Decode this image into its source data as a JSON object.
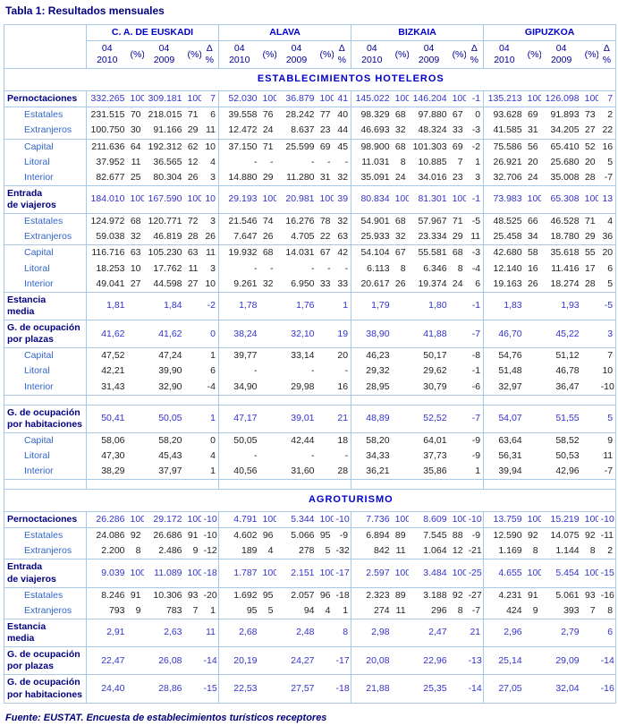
{
  "title": "Tabla 1: Resultados mensuales",
  "footer": "Fuente: EUSTAT. Encuesta de establecimientos turísticos receptores",
  "table": {
    "region_groups": [
      "C. A.  DE EUSKADI",
      "ALAVA",
      "BIZKAIA",
      "GIPUZKOA"
    ],
    "sub_columns": [
      "04\n2010",
      "(%)",
      "04\n2009",
      "(%)",
      "Δ %"
    ],
    "sections": [
      {
        "band": "ESTABLECIMIENTOS HOTELEROS",
        "rows": [
          {
            "label": "Pernoctaciones",
            "level": "main",
            "sep": true,
            "cells": [
              "332.265",
              "100",
              "309.181",
              "100",
              "7",
              "52.030",
              "100",
              "36.879",
              "100",
              "41",
              "145.022",
              "100",
              "146.204",
              "100",
              "-1",
              "135.213",
              "100",
              "126.098",
              "100",
              "7"
            ]
          },
          {
            "label": "Estatales",
            "level": "sub",
            "sep": true,
            "cells": [
              "231.515",
              "70",
              "218.015",
              "71",
              "6",
              "39.558",
              "76",
              "28.242",
              "77",
              "40",
              "98.329",
              "68",
              "97.880",
              "67",
              "0",
              "93.628",
              "69",
              "91.893",
              "73",
              "2"
            ]
          },
          {
            "label": "Extranjeros",
            "level": "sub",
            "sep": false,
            "cells": [
              "100.750",
              "30",
              "91.166",
              "29",
              "11",
              "12.472",
              "24",
              "8.637",
              "23",
              "44",
              "46.693",
              "32",
              "48.324",
              "33",
              "-3",
              "41.585",
              "31",
              "34.205",
              "27",
              "22"
            ]
          },
          {
            "label": "Capital",
            "level": "sub",
            "sep": true,
            "cells": [
              "211.636",
              "64",
              "192.312",
              "62",
              "10",
              "37.150",
              "71",
              "25.599",
              "69",
              "45",
              "98.900",
              "68",
              "101.303",
              "69",
              "-2",
              "75.586",
              "56",
              "65.410",
              "52",
              "16"
            ]
          },
          {
            "label": "Litoral",
            "level": "sub",
            "sep": false,
            "cells": [
              "37.952",
              "11",
              "36.565",
              "12",
              "4",
              "-",
              "-",
              "-",
              "-",
              "-",
              "11.031",
              "8",
              "10.885",
              "7",
              "1",
              "26.921",
              "20",
              "25.680",
              "20",
              "5"
            ]
          },
          {
            "label": "Interior",
            "level": "sub",
            "sep": false,
            "cells": [
              "82.677",
              "25",
              "80.304",
              "26",
              "3",
              "14.880",
              "29",
              "11.280",
              "31",
              "32",
              "35.091",
              "24",
              "34.016",
              "23",
              "3",
              "32.706",
              "24",
              "35.008",
              "28",
              "-7"
            ]
          },
          {
            "label": "Entrada\nde viajeros",
            "level": "main",
            "sep": true,
            "cells": [
              "184.010",
              "100",
              "167.590",
              "100",
              "10",
              "29.193",
              "100",
              "20.981",
              "100",
              "39",
              "80.834",
              "100",
              "81.301",
              "100",
              "-1",
              "73.983",
              "100",
              "65.308",
              "100",
              "13"
            ]
          },
          {
            "label": "Estatales",
            "level": "sub",
            "sep": true,
            "cells": [
              "124.972",
              "68",
              "120.771",
              "72",
              "3",
              "21.546",
              "74",
              "16.276",
              "78",
              "32",
              "54.901",
              "68",
              "57.967",
              "71",
              "-5",
              "48.525",
              "66",
              "46.528",
              "71",
              "4"
            ]
          },
          {
            "label": "Extranjeros",
            "level": "sub",
            "sep": false,
            "cells": [
              "59.038",
              "32",
              "46.819",
              "28",
              "26",
              "7.647",
              "26",
              "4.705",
              "22",
              "63",
              "25.933",
              "32",
              "23.334",
              "29",
              "11",
              "25.458",
              "34",
              "18.780",
              "29",
              "36"
            ]
          },
          {
            "label": "Capital",
            "level": "sub",
            "sep": true,
            "cells": [
              "116.716",
              "63",
              "105.230",
              "63",
              "11",
              "19.932",
              "68",
              "14.031",
              "67",
              "42",
              "54.104",
              "67",
              "55.581",
              "68",
              "-3",
              "42.680",
              "58",
              "35.618",
              "55",
              "20"
            ]
          },
          {
            "label": "Litoral",
            "level": "sub",
            "sep": false,
            "cells": [
              "18.253",
              "10",
              "17.762",
              "11",
              "3",
              "-",
              "-",
              "-",
              "-",
              "-",
              "6.113",
              "8",
              "6.346",
              "8",
              "-4",
              "12.140",
              "16",
              "11.416",
              "17",
              "6"
            ]
          },
          {
            "label": "Interior",
            "level": "sub",
            "sep": false,
            "cells": [
              "49.041",
              "27",
              "44.598",
              "27",
              "10",
              "9.261",
              "32",
              "6.950",
              "33",
              "33",
              "20.617",
              "26",
              "19.374",
              "24",
              "6",
              "19.163",
              "26",
              "18.274",
              "28",
              "5"
            ]
          },
          {
            "label": "Estancia\nmedia",
            "level": "main",
            "sep": true,
            "cells": [
              "1,81",
              "",
              "1,84",
              "",
              "-2",
              "1,78",
              "",
              "1,76",
              "",
              "1",
              "1,79",
              "",
              "1,80",
              "",
              "-1",
              "1,83",
              "",
              "1,93",
              "",
              "-5"
            ]
          },
          {
            "label": "G. de ocupación\npor plazas",
            "level": "main",
            "sep": true,
            "cells": [
              "41,62",
              "",
              "41,62",
              "",
              "0",
              "38,24",
              "",
              "32,10",
              "",
              "19",
              "38,90",
              "",
              "41,88",
              "",
              "-7",
              "46,70",
              "",
              "45,22",
              "",
              "3"
            ]
          },
          {
            "label": "Capital",
            "level": "sub",
            "sep": true,
            "cells": [
              "47,52",
              "",
              "47,24",
              "",
              "1",
              "39,77",
              "",
              "33,14",
              "",
              "20",
              "46,23",
              "",
              "50,17",
              "",
              "-8",
              "54,76",
              "",
              "51,12",
              "",
              "7"
            ]
          },
          {
            "label": "Litoral",
            "level": "sub",
            "sep": false,
            "cells": [
              "42,21",
              "",
              "39,90",
              "",
              "6",
              "-",
              "",
              "-",
              "",
              "-",
              "29,32",
              "",
              "29,62",
              "",
              "-1",
              "51,48",
              "",
              "46,78",
              "",
              "10"
            ]
          },
          {
            "label": "Interior",
            "level": "sub",
            "sep": false,
            "cells": [
              "31,43",
              "",
              "32,90",
              "",
              "-4",
              "34,90",
              "",
              "29,98",
              "",
              "16",
              "28,95",
              "",
              "30,79",
              "",
              "-6",
              "32,97",
              "",
              "36,47",
              "",
              "-10"
            ]
          },
          {
            "spacer": true
          },
          {
            "label": "G. de ocupación\npor habitaciones",
            "level": "main",
            "sep": true,
            "cells": [
              "50,41",
              "",
              "50,05",
              "",
              "1",
              "47,17",
              "",
              "39,01",
              "",
              "21",
              "48,89",
              "",
              "52,52",
              "",
              "-7",
              "54,07",
              "",
              "51,55",
              "",
              "5"
            ]
          },
          {
            "label": "Capital",
            "level": "sub",
            "sep": true,
            "cells": [
              "58,06",
              "",
              "58,20",
              "",
              "0",
              "50,05",
              "",
              "42,44",
              "",
              "18",
              "58,20",
              "",
              "64,01",
              "",
              "-9",
              "63,64",
              "",
              "58,52",
              "",
              "9"
            ]
          },
          {
            "label": "Litoral",
            "level": "sub",
            "sep": false,
            "cells": [
              "47,30",
              "",
              "45,43",
              "",
              "4",
              "-",
              "",
              "-",
              "",
              "-",
              "34,33",
              "",
              "37,73",
              "",
              "-9",
              "56,31",
              "",
              "50,53",
              "",
              "11"
            ]
          },
          {
            "label": "Interior",
            "level": "sub",
            "sep": false,
            "cells": [
              "38,29",
              "",
              "37,97",
              "",
              "1",
              "40,56",
              "",
              "31,60",
              "",
              "28",
              "36,21",
              "",
              "35,86",
              "",
              "1",
              "39,94",
              "",
              "42,96",
              "",
              "-7"
            ]
          },
          {
            "spacer": true
          }
        ]
      },
      {
        "band": "AGROTURISMO",
        "rows": [
          {
            "label": "Pernoctaciones",
            "level": "main",
            "sep": true,
            "cells": [
              "26.286",
              "100",
              "29.172",
              "100",
              "-10",
              "4.791",
              "100",
              "5.344",
              "100",
              "-10",
              "7.736",
              "100",
              "8.609",
              "100",
              "-10",
              "13.759",
              "100",
              "15.219",
              "100",
              "-10"
            ]
          },
          {
            "label": "Estatales",
            "level": "sub",
            "sep": true,
            "cells": [
              "24.086",
              "92",
              "26.686",
              "91",
              "-10",
              "4.602",
              "96",
              "5.066",
              "95",
              "-9",
              "6.894",
              "89",
              "7.545",
              "88",
              "-9",
              "12.590",
              "92",
              "14.075",
              "92",
              "-11"
            ]
          },
          {
            "label": "Extranjeros",
            "level": "sub",
            "sep": false,
            "cells": [
              "2.200",
              "8",
              "2.486",
              "9",
              "-12",
              "189",
              "4",
              "278",
              "5",
              "-32",
              "842",
              "11",
              "1.064",
              "12",
              "-21",
              "1.169",
              "8",
              "1.144",
              "8",
              "2"
            ]
          },
          {
            "label": "Entrada\nde viajeros",
            "level": "main",
            "sep": true,
            "cells": [
              "9.039",
              "100",
              "11.089",
              "100",
              "-18",
              "1.787",
              "100",
              "2.151",
              "100",
              "-17",
              "2.597",
              "100",
              "3.484",
              "100",
              "-25",
              "4.655",
              "100",
              "5.454",
              "100",
              "-15"
            ]
          },
          {
            "label": "Estatales",
            "level": "sub",
            "sep": true,
            "cells": [
              "8.246",
              "91",
              "10.306",
              "93",
              "-20",
              "1.692",
              "95",
              "2.057",
              "96",
              "-18",
              "2.323",
              "89",
              "3.188",
              "92",
              "-27",
              "4.231",
              "91",
              "5.061",
              "93",
              "-16"
            ]
          },
          {
            "label": "Extranjeros",
            "level": "sub",
            "sep": false,
            "cells": [
              "793",
              "9",
              "783",
              "7",
              "1",
              "95",
              "5",
              "94",
              "4",
              "1",
              "274",
              "11",
              "296",
              "8",
              "-7",
              "424",
              "9",
              "393",
              "7",
              "8"
            ]
          },
          {
            "label": "Estancia\nmedia",
            "level": "main",
            "sep": true,
            "cells": [
              "2,91",
              "",
              "2,63",
              "",
              "11",
              "2,68",
              "",
              "2,48",
              "",
              "8",
              "2,98",
              "",
              "2,47",
              "",
              "21",
              "2,96",
              "",
              "2,79",
              "",
              "6"
            ]
          },
          {
            "label": "G. de ocupación\npor plazas",
            "level": "main",
            "sep": true,
            "cells": [
              "22,47",
              "",
              "26,08",
              "",
              "-14",
              "20,19",
              "",
              "24,27",
              "",
              "-17",
              "20,08",
              "",
              "22,96",
              "",
              "-13",
              "25,14",
              "",
              "29,09",
              "",
              "-14"
            ]
          },
          {
            "label": "G. de ocupación\npor habitaciones",
            "level": "main",
            "sep": true,
            "cells": [
              "24,40",
              "",
              "28,86",
              "",
              "-15",
              "22,53",
              "",
              "27,57",
              "",
              "-18",
              "21,88",
              "",
              "25,35",
              "",
              "-14",
              "27,05",
              "",
              "32,04",
              "",
              "-16"
            ]
          }
        ]
      }
    ]
  }
}
